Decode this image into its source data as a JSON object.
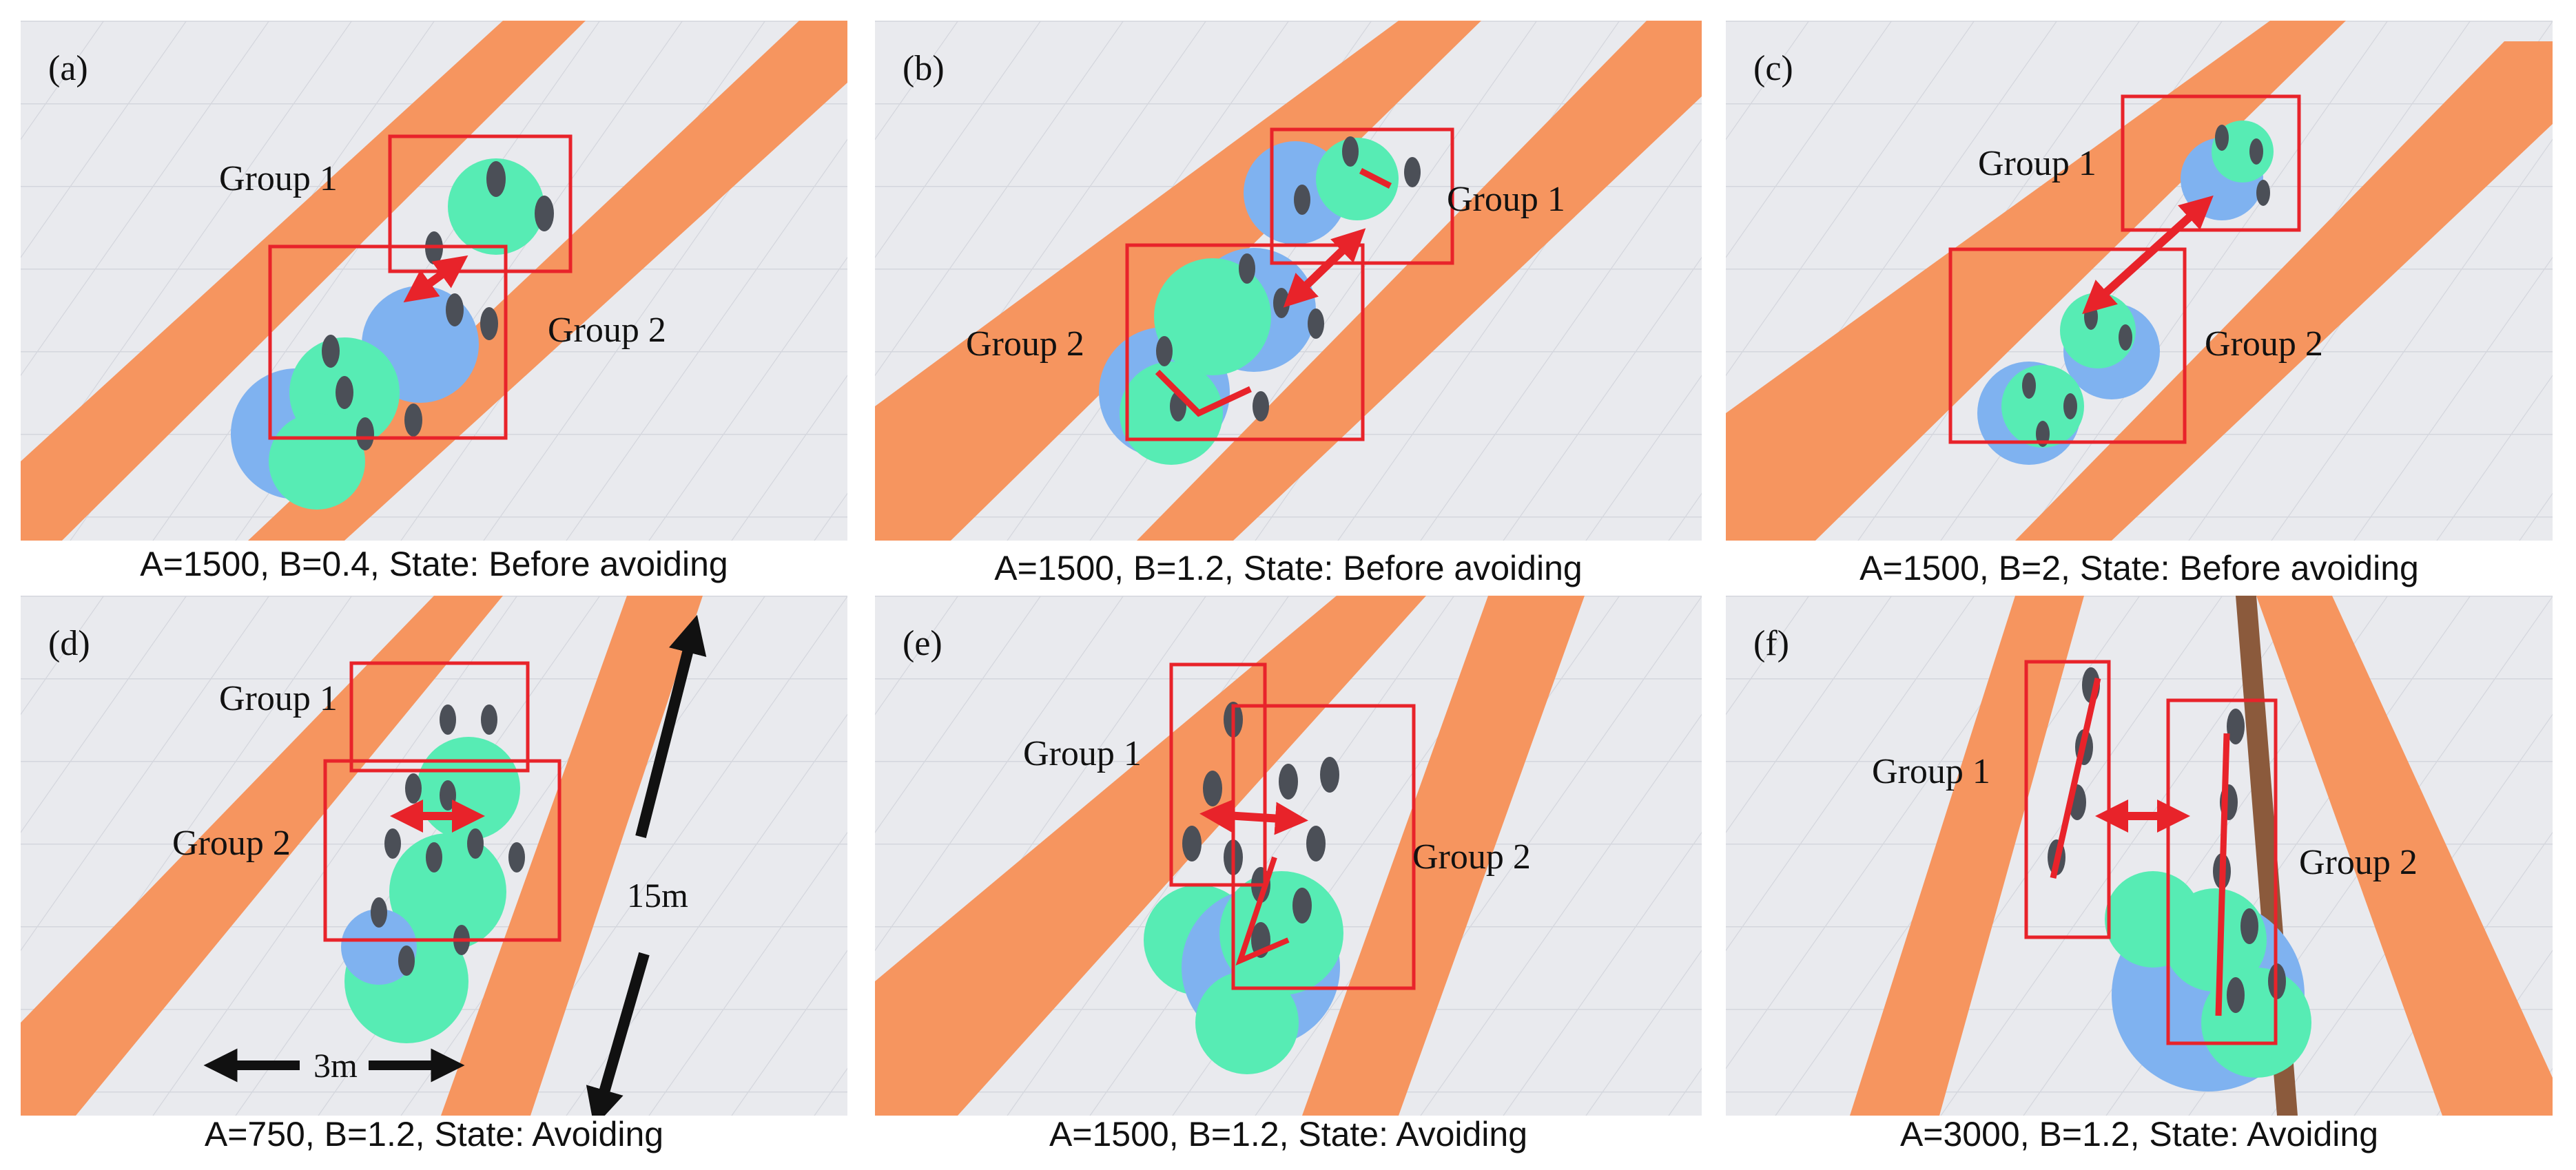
{
  "colors": {
    "floor": "#e9eaee",
    "grid": "#d4d6dd",
    "band": "#f6955f",
    "band_dark": "#e9784a",
    "circle_blue": "#7fb2f0",
    "circle_green": "#57ecb4",
    "box": "#e8232a",
    "arrow": "#e8232a",
    "pedestrian": "#4b4f57"
  },
  "panels": [
    {
      "tag": "(a)",
      "group1": "Group 1",
      "group2": "Group 2",
      "caption": "A=1500, B=0.4, State: Before avoiding"
    },
    {
      "tag": "(b)",
      "group1": "Group 1",
      "group2": "Group 2",
      "caption": "A=1500, B=1.2, State: Before avoiding"
    },
    {
      "tag": "(c)",
      "group1": "Group 1",
      "group2": "Group 2",
      "caption": "A=1500, B=2, State: Before avoiding"
    },
    {
      "tag": "(d)",
      "group1": "Group 1",
      "group2": "Group 2",
      "caption": "A=750, B=1.2, State: Avoiding",
      "length_label": "15m",
      "width_label": "3m"
    },
    {
      "tag": "(e)",
      "group1": "Group 1",
      "group2": "Group 2",
      "caption": "A=1500, B=1.2, State: Avoiding"
    },
    {
      "tag": "(f)",
      "group1": "Group 1",
      "group2": "Group 2",
      "caption": "A=3000, B=1.2, State: Avoiding"
    }
  ]
}
